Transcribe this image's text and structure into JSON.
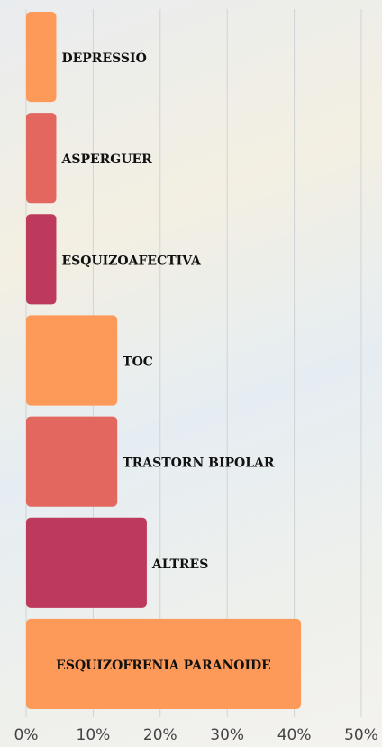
{
  "chart_data": {
    "type": "bar",
    "orientation": "horizontal",
    "categories": [
      "DEPRESSIÓ",
      "ASPERGUER",
      "ESQUIZOAFECTIVA",
      "TOC",
      "TRASTORN BIPOLAR",
      "ALTRES",
      "ESQUIZOFRENIA PARANOIDE"
    ],
    "values": [
      4.5,
      4.5,
      4.5,
      13.6,
      13.6,
      18,
      41
    ],
    "colors": [
      "#fd9a5a",
      "#e3675e",
      "#bd3a5d",
      "#fd9a5a",
      "#e3675e",
      "#bd3a5d",
      "#fd9a5a"
    ],
    "xlim": [
      0,
      50
    ],
    "xticks": [
      {
        "value": 0,
        "label": "0%"
      },
      {
        "value": 10,
        "label": "10%"
      },
      {
        "value": 20,
        "label": "20%"
      },
      {
        "value": 30,
        "label": "30%"
      },
      {
        "value": 40,
        "label": "40%"
      },
      {
        "value": 50,
        "label": "50%"
      }
    ],
    "grid": true
  }
}
